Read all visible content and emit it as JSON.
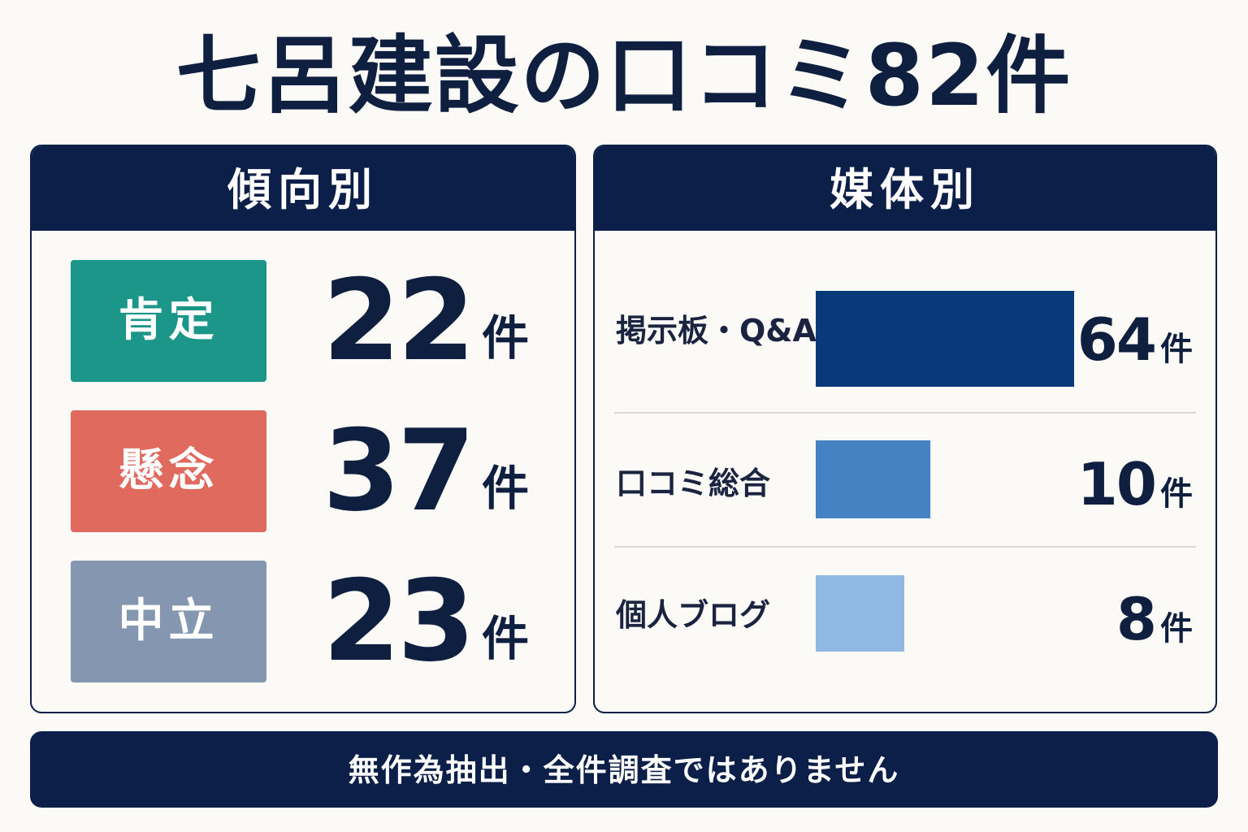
{
  "title": "七呂建設の口コミ82件",
  "sentiment": {
    "header": "傾向別",
    "unit": "件",
    "items": [
      {
        "label": "肯定",
        "value": "22",
        "color": "#1c9688"
      },
      {
        "label": "懸念",
        "value": "37",
        "color": "#e06a5e"
      },
      {
        "label": "中立",
        "value": "23",
        "color": "#8496b0"
      }
    ]
  },
  "media": {
    "header": "媒体別",
    "unit": "件",
    "items": [
      {
        "label": "掲示板・Q&A",
        "value": "64",
        "color": "#083a7a"
      },
      {
        "label": "口コミ総合",
        "value": "10",
        "color": "#4482c4"
      },
      {
        "label": "個人ブログ",
        "value": "8",
        "color": "#8fb8e2"
      }
    ]
  },
  "footer": "無作為抽出・全件調査ではありません",
  "chart_data": [
    {
      "type": "table",
      "title": "傾向別",
      "categories": [
        "肯定",
        "懸念",
        "中立"
      ],
      "values": [
        22,
        37,
        23
      ]
    },
    {
      "type": "bar",
      "title": "媒体別",
      "categories": [
        "掲示板・Q&A",
        "口コミ総合",
        "個人ブログ"
      ],
      "values": [
        64,
        10,
        8
      ]
    }
  ]
}
